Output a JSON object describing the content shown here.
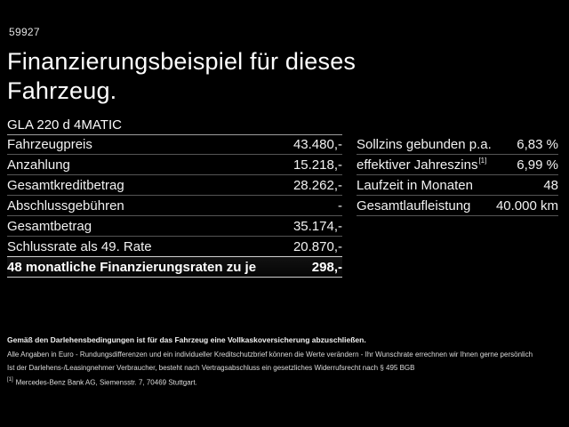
{
  "page": {
    "code": "59927",
    "title_line1": "Finanzierungsbeispiel für dieses",
    "title_line2": "Fahrzeug.",
    "model": "GLA 220 d 4MATIC"
  },
  "finance_table": {
    "rows": [
      {
        "label": "Fahrzeugpreis",
        "value": "43.480,-"
      },
      {
        "label": "Anzahlung",
        "value": "15.218,-"
      },
      {
        "label": "Gesamtkreditbetrag",
        "value": "28.262,-"
      },
      {
        "label": "Abschlussgebühren",
        "value": "-"
      },
      {
        "label": "Gesamtbetrag",
        "value": "35.174,-"
      },
      {
        "label": "Schlussrate als 49. Rate",
        "value": "20.870,-"
      }
    ],
    "highlight_row": {
      "label": "48 monatliche Finanzierungsraten zu je",
      "value": "298,-"
    }
  },
  "conditions_table": {
    "rows": [
      {
        "label": "Sollzins gebunden p.a.",
        "sup": "",
        "value": "6,83 %"
      },
      {
        "label": "effektiver Jahreszins",
        "sup": "[1]",
        "value": "6,99 %"
      },
      {
        "label": "Laufzeit in Monaten",
        "sup": "",
        "value": "48"
      },
      {
        "label": "Gesamtlaufleistung",
        "sup": "",
        "value": "40.000 km"
      }
    ]
  },
  "footer": {
    "line1": "Gemäß den Darlehensbedingungen ist für das Fahrzeug eine Vollkaskoversicherung abzuschließen.",
    "line2": "Alle Angaben in Euro - Rundungsdifferenzen und ein individueller Kreditschutzbrief können die Werte verändern - Ihr Wunschrate errechnen wir Ihnen gerne persönlich",
    "line3": "Ist der Darlehens-/Leasingnehmer Verbraucher, besteht nach Vertragsabschluss ein gesetzliches Widerrufsrecht nach § 495 BGB",
    "footnote_marker": "[1]",
    "footnote_text": "Mercedes-Benz Bank AG, Siemensstr. 7, 70469 Stuttgart."
  },
  "colors": {
    "background": "#000000",
    "text": "#f2f2f2",
    "separator": "#555555",
    "separator_strong": "#cfcfcf"
  }
}
